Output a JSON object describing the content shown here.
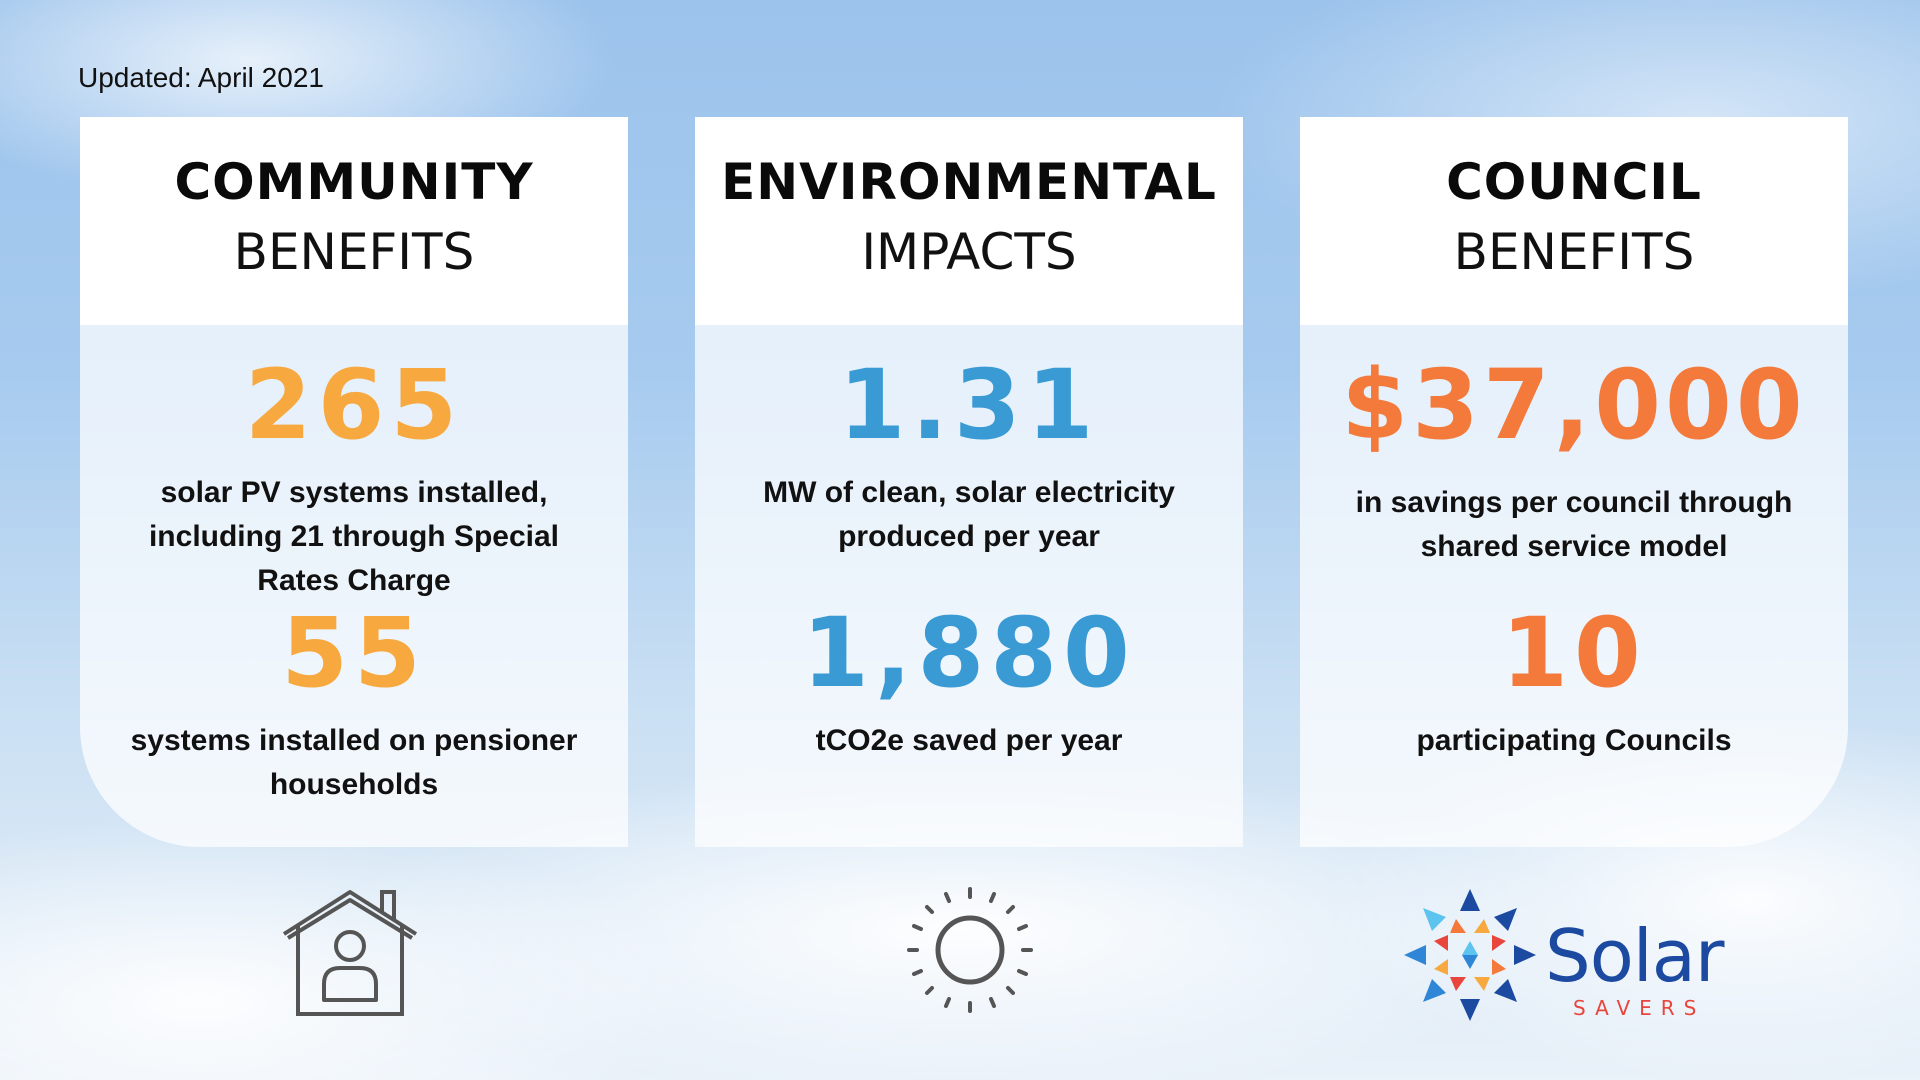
{
  "updated": "Updated: April 2021",
  "cards": {
    "community": {
      "title_bold": "COMMUNITY",
      "title_light": "BENEFITS",
      "stat1_value": "265",
      "stat1_desc": "solar PV systems installed, including 21 through Special Rates Charge",
      "stat2_value": "55",
      "stat2_desc": "systems installed on pensioner households"
    },
    "environment": {
      "title_bold": "ENVIRONMENTAL",
      "title_light": "IMPACTS",
      "stat1_value": "1.31",
      "stat1_desc": "MW of clean, solar electricity produced per year",
      "stat2_value": "1,880",
      "stat2_desc": "tCO2e saved per year"
    },
    "council": {
      "title_bold": "COUNCIL",
      "title_light": "BENEFITS",
      "stat1_value": "$37,000",
      "stat1_desc": "in savings per council through shared service model",
      "stat2_value": "10",
      "stat2_desc": "participating Councils"
    }
  },
  "icons": {
    "house": "house-person-icon",
    "sun": "sun-icon",
    "logo": "solar-savers-logo"
  },
  "logo": {
    "word": "Solar",
    "subword": "SAVERS"
  },
  "colors": {
    "community_accent": "#f7a940",
    "environment_accent": "#3a9ad4",
    "council_accent": "#f47a3c",
    "logo_blue": "#1b4aa0",
    "logo_red": "#e8453c"
  }
}
